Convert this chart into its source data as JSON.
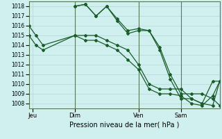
{
  "background_color": "#cff0ee",
  "grid_color": "#aaddcc",
  "line_color": "#1a5c2a",
  "ylim": [
    1007.5,
    1018.5
  ],
  "xlim": [
    0,
    54
  ],
  "yticks": [
    1008,
    1009,
    1010,
    1011,
    1012,
    1013,
    1014,
    1015,
    1016,
    1017,
    1018
  ],
  "xtick_labels": [
    "Jeu",
    "Dim",
    "Ven",
    "Sam"
  ],
  "xtick_positions": [
    1,
    13,
    31,
    43
  ],
  "xlabel": "Pression niveau de la mer( hPa )",
  "series": [
    {
      "x": [
        0,
        2,
        4,
        13,
        16,
        19,
        22,
        25,
        28,
        31,
        34,
        37,
        40,
        43,
        46,
        49,
        52,
        54
      ],
      "y": [
        1016,
        1015,
        1014,
        1015,
        1015,
        1015,
        1014.5,
        1014,
        1013.5,
        1012,
        1010,
        1009.5,
        1009.5,
        1009.5,
        1008.5,
        1008,
        1010.3,
        1010.3
      ]
    },
    {
      "x": [
        0,
        2,
        4,
        13,
        16,
        19,
        22,
        25,
        28,
        31,
        34,
        37,
        40,
        43,
        46,
        49,
        52,
        54
      ],
      "y": [
        1015,
        1014,
        1013.5,
        1015,
        1014.5,
        1014.5,
        1014,
        1013.5,
        1012.5,
        1011.5,
        1009.5,
        1009,
        1009,
        1008.8,
        1008,
        1007.8,
        1008.8,
        1010.3
      ]
    },
    {
      "x": [
        13,
        16,
        19,
        22,
        25,
        28,
        31,
        34,
        37,
        40,
        43,
        46,
        49,
        52,
        54
      ],
      "y": [
        1018,
        1018.2,
        1017,
        1018.0,
        1016.7,
        1015.5,
        1015.7,
        1015.5,
        1013.8,
        1011,
        1009,
        1009,
        1009,
        1008.5,
        1007.8
      ]
    },
    {
      "x": [
        13,
        16,
        19,
        22,
        25,
        28,
        31,
        34,
        37,
        40,
        43,
        46,
        49,
        52,
        54
      ],
      "y": [
        1018,
        1018.2,
        1017,
        1018.0,
        1016.5,
        1015.2,
        1015.5,
        1015.5,
        1013.5,
        1010.5,
        1008.5,
        1008.5,
        1008,
        1007.8,
        1010.3
      ]
    }
  ],
  "vline_positions": [
    13,
    31,
    43
  ],
  "vline_color": "#557755",
  "vline_lw": 0.8,
  "marker": "D",
  "markersize": 2.0,
  "linewidth": 0.9
}
